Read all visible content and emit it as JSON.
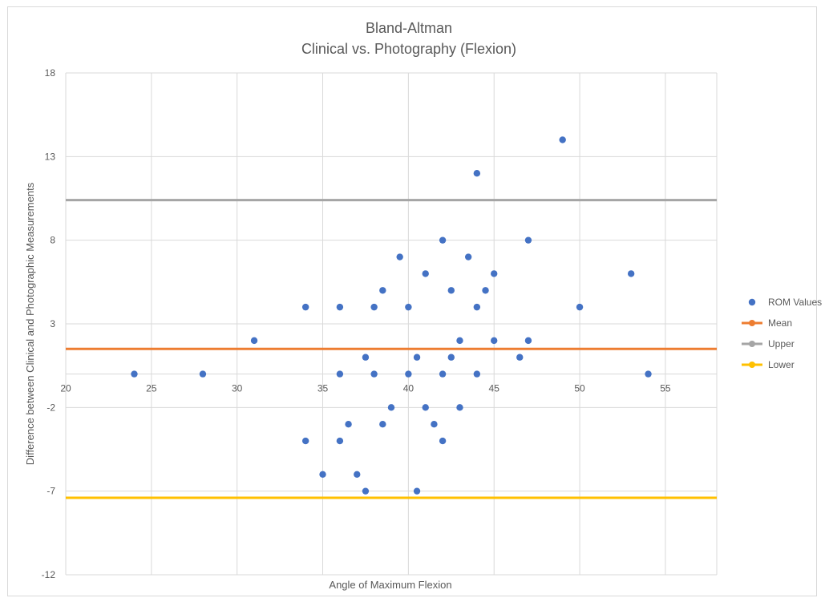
{
  "chart_data": {
    "type": "scatter",
    "title": [
      "Bland-Altman",
      "Clinical vs. Photography (Flexion)"
    ],
    "xlabel": "Angle of Maximum Flexion",
    "ylabel": "Difference between Clinical and Photographic Measurements",
    "xlim": [
      20,
      58
    ],
    "ylim": [
      -12,
      18
    ],
    "xticks": [
      20,
      25,
      30,
      35,
      40,
      45,
      50,
      55
    ],
    "yticks": [
      -12,
      -7,
      -2,
      3,
      8,
      13,
      18
    ],
    "grid": true,
    "legend_position": "right",
    "series": [
      {
        "name": "ROM Values",
        "type": "scatter",
        "color": "#4472C4",
        "points": [
          [
            24,
            0
          ],
          [
            28,
            0
          ],
          [
            31,
            2
          ],
          [
            34,
            4
          ],
          [
            34,
            -4
          ],
          [
            35,
            -6
          ],
          [
            36,
            4
          ],
          [
            36,
            0
          ],
          [
            36,
            -4
          ],
          [
            36.5,
            -3
          ],
          [
            37,
            -6
          ],
          [
            37.5,
            1
          ],
          [
            37.5,
            -7
          ],
          [
            38,
            4
          ],
          [
            38,
            0
          ],
          [
            38.5,
            5
          ],
          [
            38.5,
            -3
          ],
          [
            39,
            -2
          ],
          [
            39.5,
            7
          ],
          [
            40,
            4
          ],
          [
            40,
            0
          ],
          [
            40.5,
            1
          ],
          [
            40.5,
            -7
          ],
          [
            41,
            6
          ],
          [
            41,
            -2
          ],
          [
            41.5,
            -3
          ],
          [
            42,
            8
          ],
          [
            42,
            0
          ],
          [
            42,
            -4
          ],
          [
            42.5,
            5
          ],
          [
            42.5,
            1
          ],
          [
            43,
            2
          ],
          [
            43,
            -2
          ],
          [
            43.5,
            7
          ],
          [
            44,
            12
          ],
          [
            44,
            4
          ],
          [
            44,
            0
          ],
          [
            44.5,
            5
          ],
          [
            45,
            6
          ],
          [
            45,
            2
          ],
          [
            46.5,
            1
          ],
          [
            47,
            8
          ],
          [
            47,
            2
          ],
          [
            49,
            14
          ],
          [
            50,
            4
          ],
          [
            53,
            6
          ],
          [
            54,
            0
          ]
        ]
      },
      {
        "name": "Mean",
        "type": "hline",
        "color": "#ED7D31",
        "y": 1.5
      },
      {
        "name": "Upper",
        "type": "hline",
        "color": "#A5A5A5",
        "y": 10.4
      },
      {
        "name": "Lower",
        "type": "hline",
        "color": "#FFC000",
        "y": -7.4
      }
    ]
  }
}
